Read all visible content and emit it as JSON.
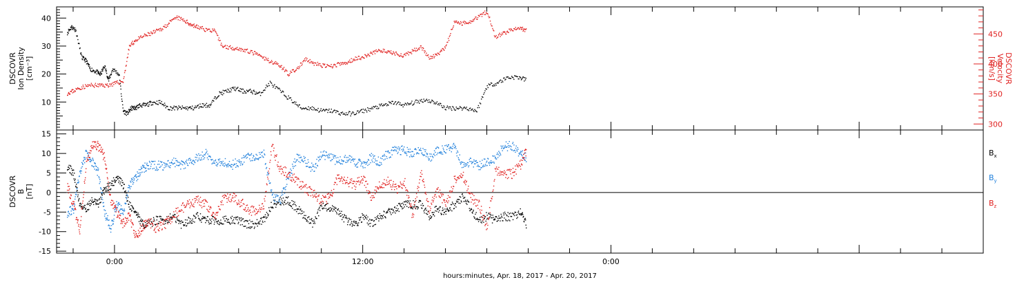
{
  "chart_data": [
    {
      "type": "scatter",
      "panel": "top",
      "ylabel_lines": [
        "DSCOVR",
        "Ion Density",
        "[cm⁻³]"
      ],
      "ylim": [
        0,
        44
      ],
      "yticks": [
        10,
        20,
        30,
        40
      ],
      "y2label_lines": [
        "DSCOVR",
        "Velocity",
        "[km/s]"
      ],
      "y2lim": [
        290,
        495
      ],
      "y2ticks": [
        300,
        350,
        400,
        450
      ],
      "series": [
        {
          "name": "Ion Density",
          "axis": "left",
          "color": "#000000",
          "x_hours": [
            -2.3,
            -2.1,
            -1.9,
            -1.6,
            -1.4,
            -1.2,
            -0.9,
            -0.7,
            -0.5,
            -0.3,
            -0.1,
            0.2,
            0.4,
            0.6,
            0.8,
            1.0,
            1.2,
            1.5,
            1.8,
            2.2,
            2.6,
            3.0,
            3.4,
            3.8,
            4.2,
            4.6,
            5.0,
            5.4,
            5.8,
            6.2,
            6.6,
            7.0,
            7.5,
            8.0,
            8.5,
            9.0,
            9.5,
            10.0,
            10.5,
            11.0,
            11.5,
            12.0,
            12.5,
            13.0,
            13.5,
            14.0,
            14.5,
            15.0,
            15.5,
            16.0,
            16.5,
            17.0,
            17.5,
            18.0,
            18.5,
            19.0,
            19.5,
            19.9
          ],
          "values": [
            35,
            37,
            36,
            26,
            25,
            22,
            21,
            20,
            23,
            18,
            22,
            20,
            7,
            6,
            8,
            8,
            9,
            9,
            10,
            10,
            8,
            8,
            8,
            8,
            9,
            9,
            13,
            14,
            15,
            14,
            14,
            13,
            17,
            14,
            11,
            8,
            8,
            7,
            7,
            6,
            6,
            7,
            8,
            9,
            10,
            9,
            10,
            11,
            10,
            8,
            8,
            8,
            7,
            16,
            17,
            19,
            19,
            18
          ]
        },
        {
          "name": "Velocity",
          "axis": "right",
          "color": "#e0201f",
          "x_hours": [
            -2.3,
            -2.0,
            -1.6,
            -1.2,
            -0.8,
            -0.4,
            0.0,
            0.4,
            0.7,
            1.0,
            1.4,
            1.8,
            2.2,
            2.6,
            3.0,
            3.4,
            3.7,
            4.0,
            4.4,
            4.8,
            5.2,
            5.6,
            6.0,
            6.4,
            6.8,
            7.2,
            7.6,
            8.0,
            8.4,
            8.8,
            9.2,
            9.6,
            10.0,
            10.4,
            10.8,
            11.2,
            11.6,
            12.0,
            12.4,
            12.8,
            13.2,
            13.6,
            14.0,
            14.4,
            14.8,
            15.2,
            15.6,
            16.0,
            16.4,
            16.8,
            17.2,
            17.6,
            18.0,
            18.4,
            18.8,
            19.2,
            19.6,
            19.9
          ],
          "values": [
            352,
            356,
            362,
            365,
            365,
            365,
            368,
            372,
            430,
            440,
            447,
            452,
            458,
            468,
            478,
            472,
            466,
            462,
            458,
            456,
            430,
            428,
            426,
            422,
            418,
            410,
            404,
            398,
            384,
            392,
            408,
            402,
            398,
            396,
            400,
            402,
            410,
            412,
            418,
            424,
            420,
            418,
            414,
            422,
            430,
            410,
            416,
            428,
            470,
            468,
            472,
            480,
            488,
            445,
            452,
            458,
            460,
            456
          ]
        }
      ]
    },
    {
      "type": "scatter",
      "panel": "bottom",
      "ylabel_lines": [
        "DSCOVR",
        "B",
        "[nT]"
      ],
      "ylim": [
        -15.5,
        16
      ],
      "yticks": [
        -15,
        -10,
        -5,
        0,
        5,
        10,
        15
      ],
      "zero_line": true,
      "series": [
        {
          "name": "Bx",
          "color": "#000000",
          "x_hours": [
            -2.3,
            -2.0,
            -1.7,
            -1.4,
            -1.1,
            -0.8,
            -0.5,
            -0.2,
            0.1,
            0.4,
            0.7,
            1.0,
            1.3,
            1.6,
            2.0,
            2.4,
            2.8,
            3.2,
            3.6,
            4.0,
            4.4,
            4.8,
            5.2,
            5.6,
            6.0,
            6.4,
            6.8,
            7.2,
            7.6,
            8.0,
            8.4,
            8.8,
            9.2,
            9.6,
            10.0,
            10.4,
            10.8,
            11.2,
            11.6,
            12.0,
            12.4,
            12.8,
            13.2,
            13.6,
            14.0,
            14.4,
            14.8,
            15.2,
            15.6,
            16.0,
            16.4,
            16.8,
            17.2,
            17.6,
            18.0,
            18.4,
            18.8,
            19.2,
            19.6,
            19.9
          ],
          "values": [
            7,
            5,
            -3,
            -4,
            -2,
            -3,
            1,
            2,
            4,
            2,
            -3,
            -5,
            -8,
            -8,
            -7,
            -7,
            -6,
            -8,
            -7,
            -6,
            -7,
            -7,
            -7,
            -7,
            -7,
            -8,
            -8,
            -7,
            -3,
            -2,
            -2,
            -4,
            -6,
            -8,
            -3,
            -4,
            -5,
            -7,
            -8,
            -6,
            -8,
            -6,
            -5,
            -4,
            -3,
            -3,
            -3,
            -6,
            -4,
            -5,
            -3,
            -1,
            -4,
            -7,
            -6,
            -7,
            -6,
            -6,
            -5,
            -8
          ]
        },
        {
          "name": "By",
          "color": "#1e7fdb",
          "x_hours": [
            -2.3,
            -2.0,
            -1.7,
            -1.4,
            -1.1,
            -0.8,
            -0.5,
            -0.2,
            0.1,
            0.4,
            0.7,
            1.0,
            1.3,
            1.6,
            2.0,
            2.4,
            2.8,
            3.2,
            3.6,
            4.0,
            4.4,
            4.8,
            5.2,
            5.6,
            6.0,
            6.4,
            6.8,
            7.2,
            7.6,
            8.0,
            8.4,
            8.8,
            9.2,
            9.6,
            10.0,
            10.4,
            10.8,
            11.2,
            11.6,
            12.0,
            12.4,
            12.8,
            13.2,
            13.6,
            14.0,
            14.4,
            14.8,
            15.2,
            15.6,
            16.0,
            16.4,
            16.8,
            17.2,
            17.6,
            18.0,
            18.4,
            18.8,
            19.2,
            19.6,
            19.9
          ],
          "values": [
            -5,
            -4,
            5,
            10,
            8,
            5,
            -5,
            -9,
            -3,
            -5,
            2,
            4,
            6,
            7,
            7,
            7,
            8,
            7,
            8,
            9,
            10,
            8,
            8,
            7,
            8,
            9,
            9,
            10,
            -1,
            -2,
            4,
            9,
            8,
            6,
            10,
            9,
            8,
            9,
            8,
            7,
            9,
            8,
            10,
            11,
            11,
            10,
            11,
            9,
            11,
            11,
            12,
            7,
            8,
            7,
            8,
            9,
            12,
            12,
            10,
            9
          ]
        },
        {
          "name": "Bz",
          "color": "#e0201f",
          "x_hours": [
            -2.3,
            -2.0,
            -1.7,
            -1.4,
            -1.1,
            -0.8,
            -0.5,
            -0.2,
            0.1,
            0.4,
            0.7,
            1.0,
            1.3,
            1.6,
            2.0,
            2.4,
            2.8,
            3.2,
            3.6,
            4.0,
            4.4,
            4.8,
            5.2,
            5.6,
            6.0,
            6.4,
            6.8,
            7.2,
            7.6,
            8.0,
            8.4,
            8.8,
            9.2,
            9.6,
            10.0,
            10.4,
            10.8,
            11.2,
            11.6,
            12.0,
            12.4,
            12.8,
            13.2,
            13.6,
            14.0,
            14.4,
            14.8,
            15.2,
            15.6,
            16.0,
            16.4,
            16.8,
            17.2,
            17.6,
            18.0,
            18.4,
            18.8,
            19.2,
            19.6,
            19.9
          ],
          "values": [
            2,
            -3,
            -10,
            7,
            12,
            12,
            9,
            -2,
            -5,
            -8,
            -6,
            -11,
            -9,
            -7,
            -9,
            -8,
            -6,
            -4,
            -3,
            -2,
            -3,
            -6,
            -2,
            -1,
            -2,
            -4,
            -5,
            -3,
            12,
            6,
            5,
            3,
            1,
            0,
            -2,
            -1,
            4,
            3,
            2,
            4,
            -1,
            2,
            3,
            1,
            3,
            -6,
            5,
            -4,
            1,
            -3,
            3,
            5,
            -1,
            -3,
            -9,
            6,
            5,
            5,
            7,
            11
          ]
        }
      ]
    }
  ],
  "x_axis": {
    "range_hours": [
      -2.8,
      42
    ],
    "major_ticks": [
      {
        "hours": 0,
        "label": "0:00"
      },
      {
        "hours": 12,
        "label": "12:00"
      },
      {
        "hours": 24,
        "label": "0:00"
      }
    ],
    "title": "hours:minutes, Apr. 18, 2017 - Apr. 20, 2017"
  },
  "legend": [
    {
      "base": "B",
      "sub": "x",
      "color": "#000000"
    },
    {
      "base": "B",
      "sub": "y",
      "color": "#1e7fdb"
    },
    {
      "base": "B",
      "sub": "z",
      "color": "#e0201f"
    }
  ]
}
